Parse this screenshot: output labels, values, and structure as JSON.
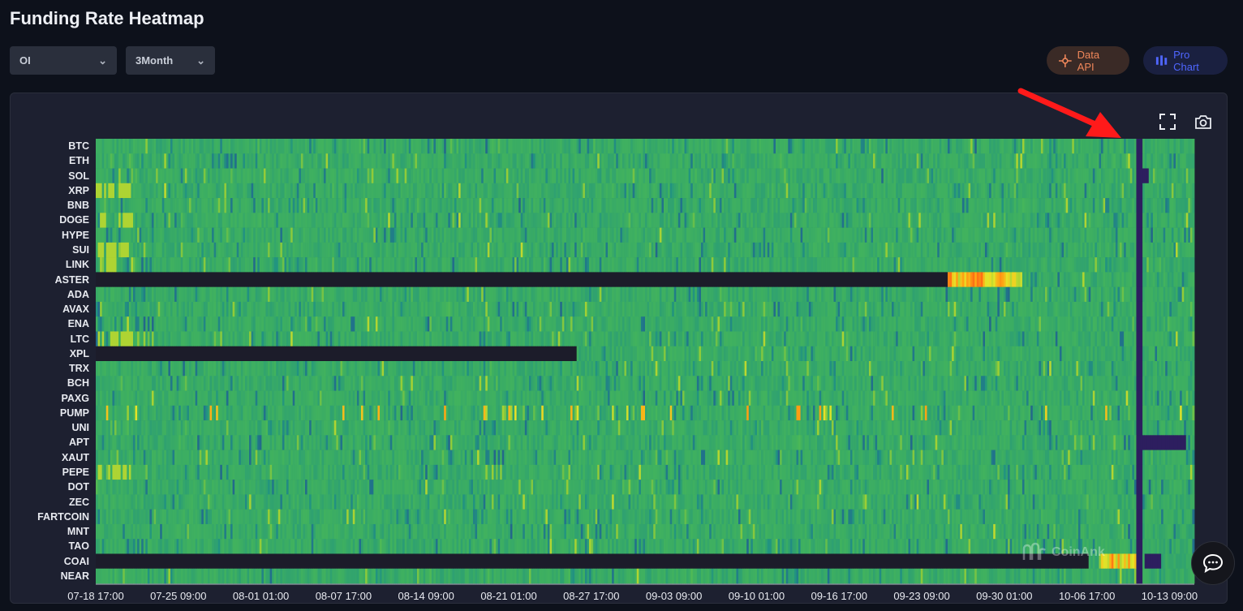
{
  "page": {
    "title": "Funding Rate Heatmap"
  },
  "filters": {
    "metric": "OI",
    "range": "3Month"
  },
  "buttons": {
    "data_api": "Data API",
    "pro_chart": "Pro Chart"
  },
  "toolbar": {
    "fullscreen_icon": "fullscreen-icon",
    "camera_icon": "camera-icon"
  },
  "watermark": {
    "text": "CoinAnk"
  },
  "chat": {
    "icon": "chat-icon"
  },
  "colors": {
    "background": "#0d111b",
    "panel": "#1d2030",
    "heat_base": "#3fae63",
    "heat_low": "#2d1657",
    "heat_high": "#ff7a14",
    "no_data": "#1c1c2a",
    "annotation_arrow": "#ff1a1a"
  },
  "chart_data": {
    "type": "heatmap",
    "title": "",
    "xlabel": "",
    "ylabel": "",
    "y_categories": [
      "BTC",
      "ETH",
      "SOL",
      "XRP",
      "BNB",
      "DOGE",
      "HYPE",
      "SUI",
      "LINK",
      "ASTER",
      "ADA",
      "AVAX",
      "ENA",
      "LTC",
      "XPL",
      "TRX",
      "BCH",
      "PAXG",
      "PUMP",
      "UNI",
      "APT",
      "XAUT",
      "PEPE",
      "DOT",
      "ZEC",
      "FARTCOIN",
      "MNT",
      "TAO",
      "COAI",
      "NEAR"
    ],
    "x_tick_labels": [
      "07-18 17:00",
      "07-25 09:00",
      "08-01 01:00",
      "08-07 17:00",
      "08-14 09:00",
      "08-21 01:00",
      "08-27 17:00",
      "09-03 09:00",
      "09-10 01:00",
      "09-16 17:00",
      "09-23 09:00",
      "09-30 01:00",
      "10-06 17:00",
      "10-13 09:00"
    ],
    "x_range": [
      "07-18 17:00",
      "10-15 09:00"
    ],
    "color_scale": "viridis-like (purple = very negative, green = neutral, yellow/orange = high positive)",
    "no_data_before": {
      "ASTER": "09-25 09:00",
      "XPL": "08-26 09:00",
      "COAI": "10-06 17:00"
    },
    "highlight_spike": {
      "x": "10-10 21:00",
      "value": "extreme negative across all coins"
    },
    "negative_blocks": [
      {
        "coin": "SOL",
        "from": "10-10 21:00",
        "to": "10-11 13:00"
      },
      {
        "coin": "APT",
        "from": "10-10 21:00",
        "to": "10-14 13:00"
      },
      {
        "coin": "COAI",
        "from": "10-11 05:00",
        "to": "10-12 13:00"
      }
    ],
    "hot_blocks": [
      {
        "coin": "ASTER",
        "from": "09-25 09:00",
        "to": "10-01 09:00"
      },
      {
        "coin": "COAI",
        "from": "10-07 17:00",
        "to": "10-10 17:00"
      }
    ]
  }
}
